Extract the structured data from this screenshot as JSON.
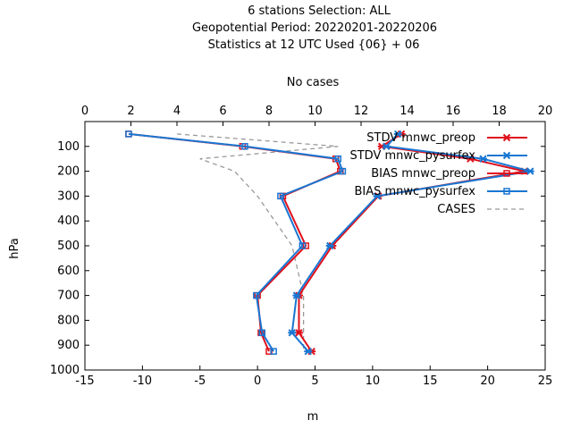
{
  "chart_data": {
    "type": "line",
    "title_lines": [
      "6 stations Selection: ALL",
      "Geopotential  Period: 20220201-20220206",
      "Statistics at 12 UTC  Used {06} + 06"
    ],
    "xlabel": "m",
    "ylabel": "hPa",
    "x2label": "No cases",
    "xlim": [
      -15,
      25
    ],
    "x2lim": [
      0,
      20
    ],
    "ylim": [
      1000,
      0
    ],
    "xticks": [
      "-15",
      "-10",
      "-5",
      "0",
      "5",
      "10",
      "15",
      "20",
      "25"
    ],
    "x2ticks": [
      "0",
      "2",
      "4",
      "6",
      "8",
      "10",
      "12",
      "14",
      "16",
      "18",
      "20"
    ],
    "yticks": [
      "100",
      "200",
      "300",
      "400",
      "500",
      "600",
      "700",
      "800",
      "900",
      "1000"
    ],
    "legend_position": "top-right",
    "series": [
      {
        "name": "STDV mnwc_preop",
        "color": "#e0101a",
        "marker": "x",
        "axis": "bottom",
        "points": [
          [
            12.5,
            50
          ],
          [
            10.8,
            100
          ],
          [
            18.5,
            150
          ],
          [
            23.2,
            200
          ],
          [
            10.5,
            300
          ],
          [
            6.5,
            500
          ],
          [
            3.6,
            700
          ],
          [
            3.6,
            850
          ],
          [
            4.7,
            925
          ]
        ]
      },
      {
        "name": "STDV mnwc_pysurfex",
        "color": "#1976d2",
        "marker": "x",
        "axis": "bottom",
        "points": [
          [
            12.2,
            50
          ],
          [
            11.2,
            100
          ],
          [
            19.6,
            150
          ],
          [
            23.7,
            200
          ],
          [
            10.4,
            300
          ],
          [
            6.3,
            500
          ],
          [
            3.4,
            700
          ],
          [
            3.0,
            850
          ],
          [
            4.4,
            925
          ]
        ]
      },
      {
        "name": "BIAS mnwc_preop",
        "color": "#e0101a",
        "marker": "square",
        "axis": "bottom",
        "points": [
          [
            -11.2,
            50
          ],
          [
            -1.3,
            100
          ],
          [
            6.8,
            150
          ],
          [
            7.2,
            200
          ],
          [
            2.2,
            300
          ],
          [
            4.2,
            500
          ],
          [
            0.0,
            700
          ],
          [
            0.3,
            850
          ],
          [
            1.0,
            925
          ]
        ]
      },
      {
        "name": "BIAS mnwc_pysurfex",
        "color": "#1976d2",
        "marker": "square",
        "axis": "bottom",
        "points": [
          [
            -11.2,
            50
          ],
          [
            -1.1,
            100
          ],
          [
            7.0,
            150
          ],
          [
            7.4,
            200
          ],
          [
            2.0,
            300
          ],
          [
            3.9,
            500
          ],
          [
            -0.1,
            700
          ],
          [
            0.4,
            850
          ],
          [
            1.4,
            925
          ]
        ]
      },
      {
        "name": "CASES",
        "color": "#999999",
        "marker": "none",
        "dashed": true,
        "axis": "top",
        "points": [
          [
            4.0,
            50
          ],
          [
            11.0,
            100
          ],
          [
            5.0,
            150
          ],
          [
            6.5,
            200
          ],
          [
            7.5,
            300
          ],
          [
            9.0,
            500
          ],
          [
            9.5,
            700
          ],
          [
            9.5,
            850
          ],
          [
            9.5,
            925
          ]
        ]
      }
    ]
  }
}
